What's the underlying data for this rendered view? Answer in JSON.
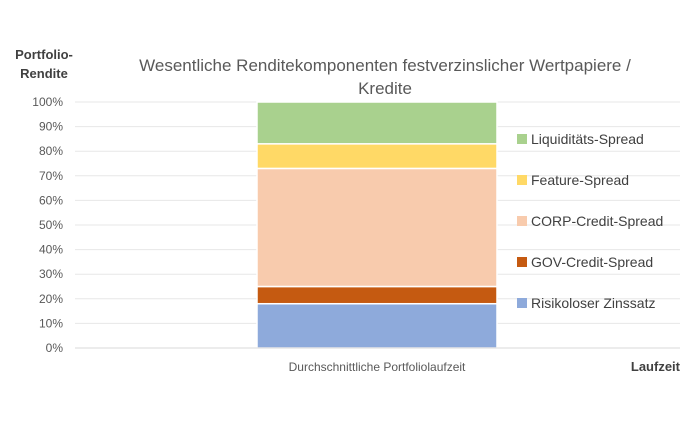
{
  "chart_data": {
    "type": "bar",
    "stacked": true,
    "title": "Wesentliche Renditekomponenten festverzinslicher Wertpapiere / Kredite",
    "title_lines": [
      "Wesentliche Renditekomponenten festverzinslicher Wertpapiere /",
      "Kredite"
    ],
    "ylabel_lines": [
      "Portfolio-",
      "Rendite"
    ],
    "xlabel": "Laufzeit",
    "categories": [
      "Durchschnittliche Portfoliolaufzeit"
    ],
    "ylim": [
      0,
      100
    ],
    "ytick_labels": [
      "0%",
      "10%",
      "20%",
      "30%",
      "40%",
      "50%",
      "60%",
      "70%",
      "80%",
      "90%",
      "100%"
    ],
    "grid": true,
    "legend_position": "right",
    "series": [
      {
        "name": "Risikoloser Zinssatz",
        "values": [
          18
        ],
        "color": "#8eaadb"
      },
      {
        "name": "GOV-Credit-Spread",
        "values": [
          7
        ],
        "color": "#c55a11"
      },
      {
        "name": "CORP-Credit-Spread",
        "values": [
          48
        ],
        "color": "#f8cbad"
      },
      {
        "name": "Feature-Spread",
        "values": [
          10
        ],
        "color": "#ffd966"
      },
      {
        "name": "Liquiditäts-Spread",
        "values": [
          17
        ],
        "color": "#a9d18e"
      }
    ]
  }
}
